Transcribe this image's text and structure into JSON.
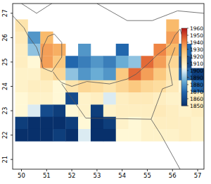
{
  "chart_data": {
    "type": "heatmap",
    "xlim": [
      49.65,
      57.25
    ],
    "ylim": [
      20.6,
      27.4
    ],
    "xticks": [
      50,
      51,
      52,
      53,
      54,
      55,
      56,
      57
    ],
    "yticks": [
      21,
      22,
      23,
      24,
      25,
      26,
      27
    ],
    "x": [
      50,
      50.5,
      51,
      51.5,
      52,
      52.5,
      53,
      53.5,
      54,
      54.5,
      55,
      55.5,
      56,
      56.5,
      57
    ],
    "y": [
      26.5,
      26,
      25.5,
      25,
      24.5,
      24,
      23.5,
      23,
      22.5,
      22
    ],
    "cells": [
      [
        1915,
        null,
        null,
        null,
        null,
        null,
        null,
        null,
        null,
        null,
        null,
        null,
        1930,
        null,
        null
      ],
      [
        1912,
        1880,
        1930,
        null,
        null,
        null,
        null,
        null,
        null,
        null,
        null,
        null,
        1935,
        null,
        null
      ],
      [
        1910,
        1890,
        1935,
        1932,
        null,
        1880,
        null,
        null,
        1870,
        null,
        null,
        1940,
        1930,
        1870,
        null
      ],
      [
        1910,
        1905,
        1935,
        1925,
        1870,
        1875,
        1880,
        1875,
        1885,
        1890,
        1945,
        1935,
        1920,
        1860,
        null
      ],
      [
        1908,
        1908,
        1915,
        1920,
        1890,
        1880,
        1885,
        1880,
        1925,
        1945,
        1935,
        1925,
        1915,
        1870,
        1855
      ],
      [
        1908,
        1910,
        1910,
        1905,
        1915,
        1920,
        1918,
        1915,
        1920,
        1925,
        1920,
        1918,
        1912,
        1905,
        1870
      ],
      [
        1905,
        1908,
        1908,
        1905,
        1860,
        1908,
        1910,
        1900,
        1910,
        1912,
        1912,
        1910,
        1908,
        1908,
        1910
      ],
      [
        1905,
        1900,
        1860,
        1855,
        1905,
        1908,
        1855,
        1908,
        1910,
        1910,
        1910,
        1912,
        1910,
        1908,
        1910
      ],
      [
        1855,
        1850,
        1850,
        1850,
        1855,
        1905,
        1850,
        1855,
        1908,
        1905,
        1908,
        1910,
        1910,
        1910,
        1908
      ],
      [
        1850,
        1850,
        1850,
        1855,
        1850,
        1900,
        1850,
        1850,
        1905,
        1905,
        1908,
        1908,
        1908,
        1910,
        1908
      ]
    ],
    "color_range": [
      1850,
      1960
    ],
    "color_ticks": [
      1850,
      1860,
      1870,
      1880,
      1890,
      1900,
      1910,
      1920,
      1930,
      1940,
      1950,
      1960
    ]
  }
}
